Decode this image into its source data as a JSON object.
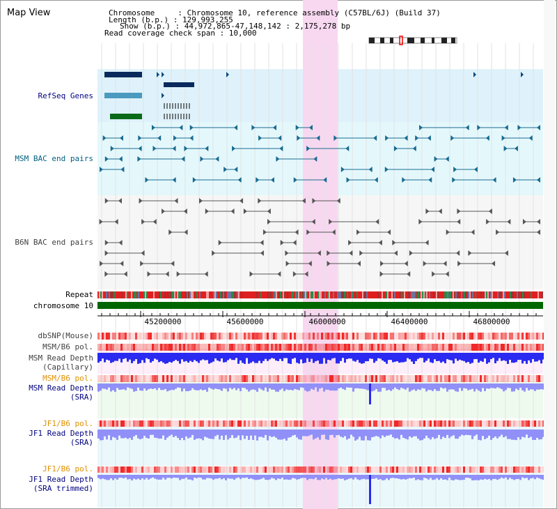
{
  "title": "Map View",
  "info": {
    "chromosome": "Chromosome     : Chromosome 10, reference assembly (C57BL/6J) (Build 37)",
    "length": "Length (b.p.) : 129,993,255",
    "show": "Show (b.p.) : 44,972,865-47,148,142 : 2,175,278 bp",
    "coverage": "Read coverage check span : 10,000"
  },
  "tracks": {
    "refseq": "RefSeq Genes",
    "msm_bac": "MSM BAC end pairs",
    "b6n_bac": "B6N BAC end pairs",
    "repeat": "Repeat",
    "chromosome": "chromosome 10",
    "dbsnp": "dbSNP(Mouse)",
    "msm_b6_pol_1": "MSM/B6 pol.",
    "msm_depth_cap_1": "MSM Read Depth",
    "msm_depth_cap_2": "(Capillary)",
    "msm_b6_pol_2": "MSM/B6 pol.",
    "msm_depth_sra_1": "MSM Read Depth",
    "msm_depth_sra_2": "(SRA)",
    "jf1_pol_1": "JF1/B6 pol.",
    "jf1_depth_1": "JF1 Read Depth",
    "jf1_depth_2": "(SRA)",
    "jf1_pol_2": "JF1/B6 pol.",
    "jf1_trim_1": "JF1 Read Depth",
    "jf1_trim_2": "(SRA trimmed)"
  },
  "axis": {
    "ticks": [
      "45200000",
      "45600000",
      "46000000",
      "46400000",
      "46800000"
    ]
  },
  "colors": {
    "highlight": "#f8d8f0",
    "refseq_bg": "#dff2fb",
    "bac_bg": "#e4f8fc",
    "chrom_green": "#006600",
    "depth_blue": "#2a2af0",
    "depth_light": "#9090f8",
    "pol_red": "#f03030"
  }
}
